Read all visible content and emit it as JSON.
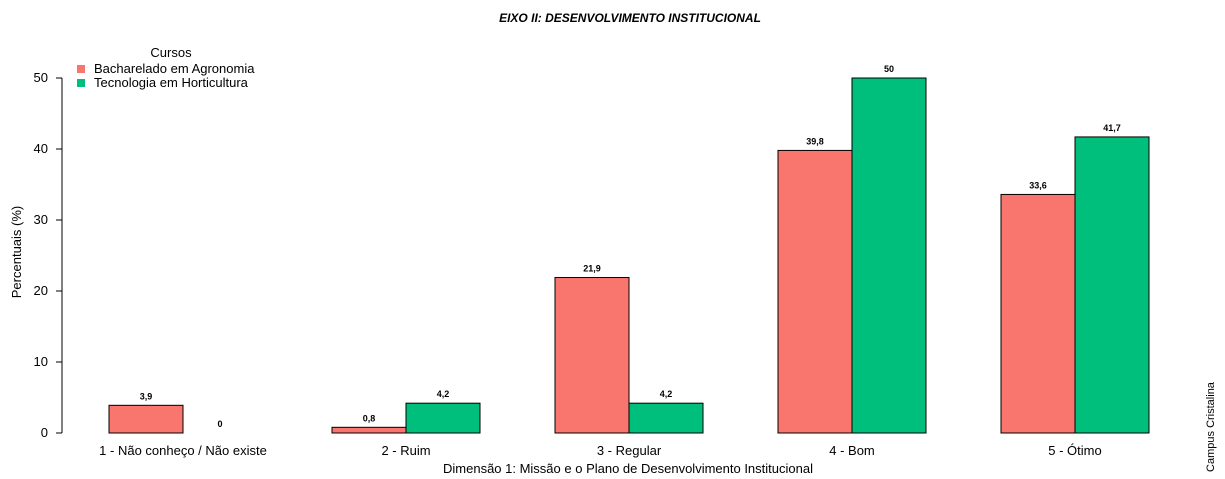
{
  "chart_data": {
    "type": "bar",
    "title": "EIXO II: DESENVOLVIMENTO INSTITUCIONAL",
    "xlabel": "Dimensão 1: Missão e o Plano de Desenvolvimento Institucional",
    "ylabel": "Percentuais (%)",
    "ylim": [
      0,
      50
    ],
    "yticks": [
      0,
      10,
      20,
      30,
      40,
      50
    ],
    "categories": [
      "1 - Não conheço / Não existe",
      "2 - Ruim",
      "3 - Regular",
      "4 - Bom",
      "5 - Ótimo"
    ],
    "legend_title": "Cursos",
    "legend_position": "top-left",
    "grid": false,
    "series": [
      {
        "name": "Bacharelado em Agronomia",
        "color": "#F8766D",
        "values": [
          3.9,
          0.8,
          21.9,
          39.8,
          33.6
        ],
        "labels": [
          "3,9",
          "0,8",
          "21,9",
          "39,8",
          "33,6"
        ]
      },
      {
        "name": "Tecnologia em Horticultura",
        "color": "#00BF7D",
        "values": [
          0,
          4.2,
          4.2,
          50,
          41.7
        ],
        "labels": [
          "0",
          "4,2",
          "4,2",
          "50",
          "41,7"
        ]
      }
    ]
  },
  "side_note": "Campus Cristalina"
}
